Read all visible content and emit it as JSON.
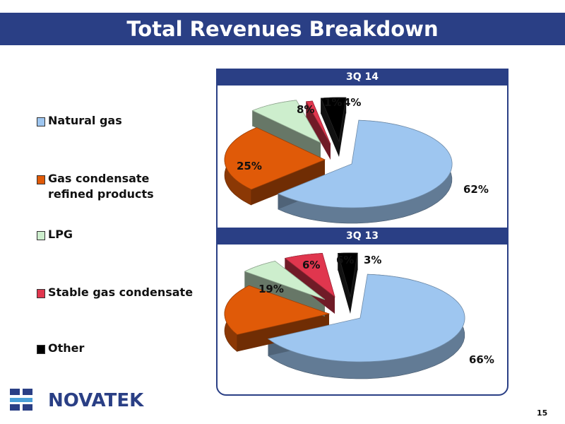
{
  "title": "Total Revenues Breakdown",
  "page_number": "15",
  "logo_text": "NOVATEK",
  "colors": {
    "banner": "#2a3f85",
    "natural_gas": "#9ec6f0",
    "gas_condensate_refined": "#e05a08",
    "lpg": "#cdeecd",
    "stable_gas_condensate": "#e0364e",
    "other": "#000000"
  },
  "legend": [
    {
      "label_line1": "Natural gas",
      "label_line2": "",
      "color": "#9ec6f0"
    },
    {
      "label_line1": "Gas condensate",
      "label_line2": "refined products",
      "color": "#e05a08"
    },
    {
      "label_line1": "LPG",
      "label_line2": "",
      "color": "#cdeecd"
    },
    {
      "label_line1": "Stable gas condensate",
      "label_line2": "",
      "color": "#e0364e"
    },
    {
      "label_line1": "Other",
      "label_line2": "",
      "color": "#000000"
    }
  ],
  "chart_data": [
    {
      "type": "pie",
      "title": "3Q 14",
      "categories": [
        "Natural gas",
        "Gas condensate refined products",
        "LPG",
        "Stable gas condensate",
        "Other"
      ],
      "values": [
        62,
        25,
        8,
        1,
        4
      ],
      "labels": [
        "62%",
        "25%",
        "8%",
        "1%",
        "4%"
      ],
      "exploded": true,
      "three_d": true
    },
    {
      "type": "pie",
      "title": "3Q 13",
      "categories": [
        "Natural gas",
        "Gas condensate refined products",
        "LPG",
        "Stable gas condensate",
        "Other"
      ],
      "values": [
        66,
        19,
        6,
        6,
        3
      ],
      "labels": [
        "66%",
        "19%",
        "6%",
        "6%",
        "3%"
      ],
      "exploded": true,
      "three_d": true
    }
  ]
}
